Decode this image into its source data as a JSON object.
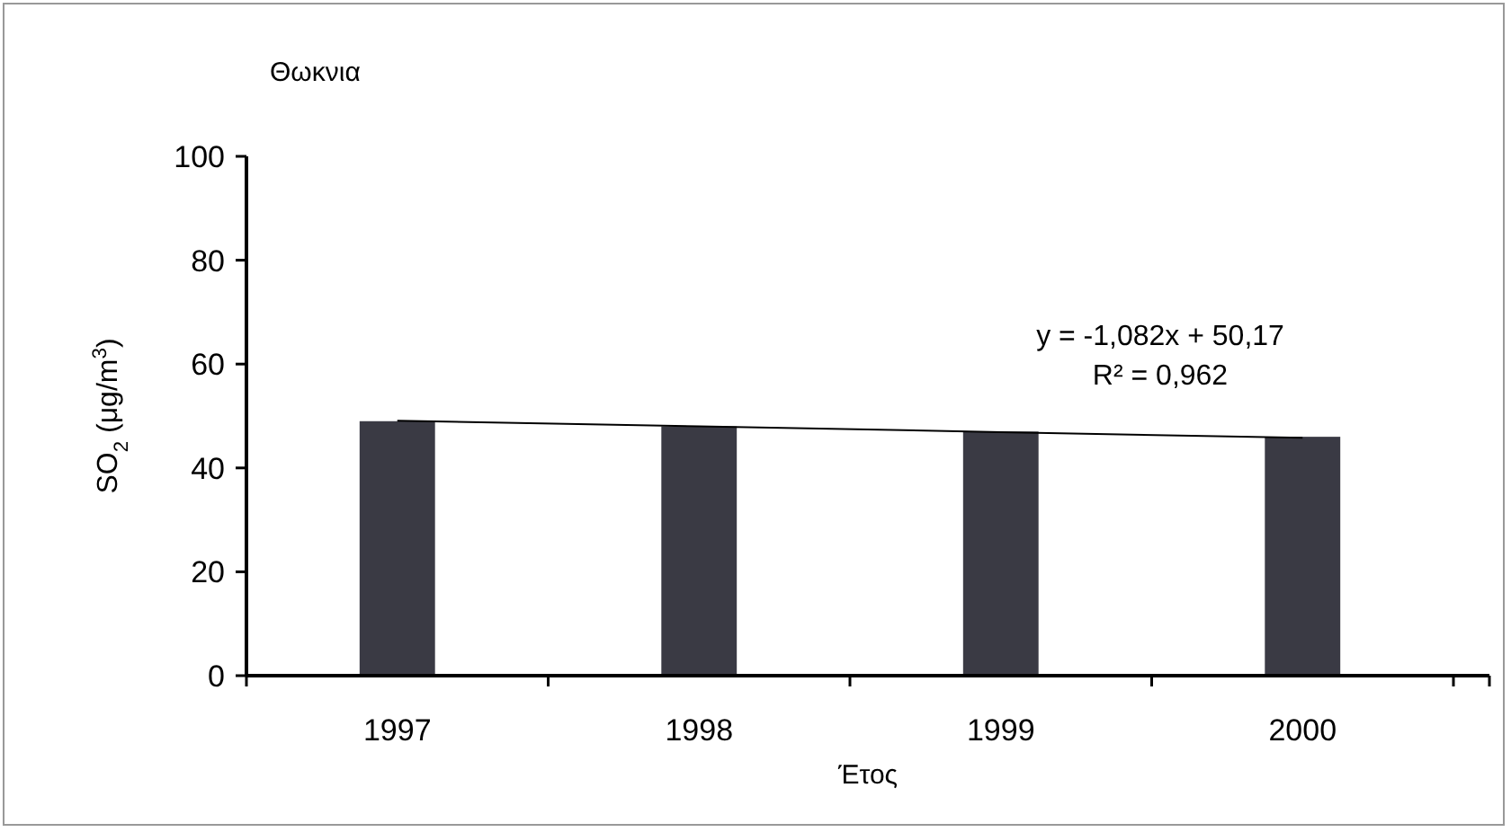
{
  "chart_data": {
    "type": "bar",
    "title": "Θωκνια",
    "xlabel": "Έτος",
    "ylabel": "SO$_{2}$ (μg/m$^{3}$)",
    "categories": [
      "1997",
      "1998",
      "1999",
      "2000"
    ],
    "series": [
      {
        "color": "#3a3a44",
        "values": [
          49,
          48,
          47,
          46
        ]
      },
      {
        "type": "line",
        "color": "#000000",
        "values": [
          49.1,
          48.0,
          46.9,
          45.8
        ]
      }
    ],
    "ylim": [
      0,
      100
    ],
    "yticks": [
      0,
      20,
      40,
      60,
      80,
      100
    ],
    "grid": false,
    "annotations": [
      "y = -1,082x + 50,17",
      "R² = 0,962"
    ]
  }
}
